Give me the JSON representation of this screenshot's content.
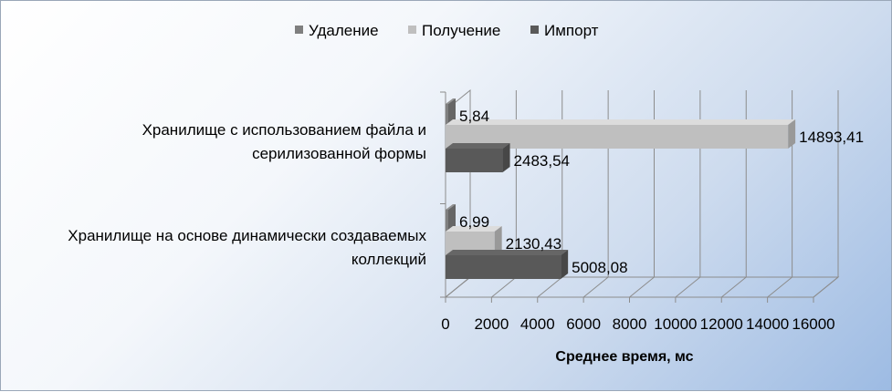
{
  "chart_data": {
    "type": "bar",
    "orientation": "horizontal",
    "three_d": true,
    "title": "",
    "xlabel": "Среднее время, мс",
    "ylabel": "",
    "xlim": [
      0,
      16000
    ],
    "x_ticks": [
      "0",
      "2000",
      "4000",
      "6000",
      "8000",
      "10000",
      "12000",
      "14000",
      "16000"
    ],
    "categories": [
      "Хранилище с использованием файла и серилизованной формы",
      "Хранилище на основе динамически создаваемых коллекций"
    ],
    "category_lines": [
      [
        "Хранилище с использованием файла и",
        "серилизованной формы"
      ],
      [
        "Хранилище на основе динамически создаваемых",
        "коллекций"
      ]
    ],
    "series": [
      {
        "name": "Удаление",
        "values": [
          5.84,
          6.99
        ],
        "labels": [
          "5,84",
          "6,99"
        ],
        "color": "#7f7f7f"
      },
      {
        "name": "Получение",
        "values": [
          14893.41,
          2130.43
        ],
        "labels": [
          "14893,41",
          "2130,43"
        ],
        "color": "#bfbfbf"
      },
      {
        "name": "Импорт",
        "values": [
          2483.54,
          5008.08
        ],
        "labels": [
          "2483,54",
          "5008,08"
        ],
        "color": "#595959"
      }
    ],
    "legend_position": "top",
    "grid": true
  }
}
